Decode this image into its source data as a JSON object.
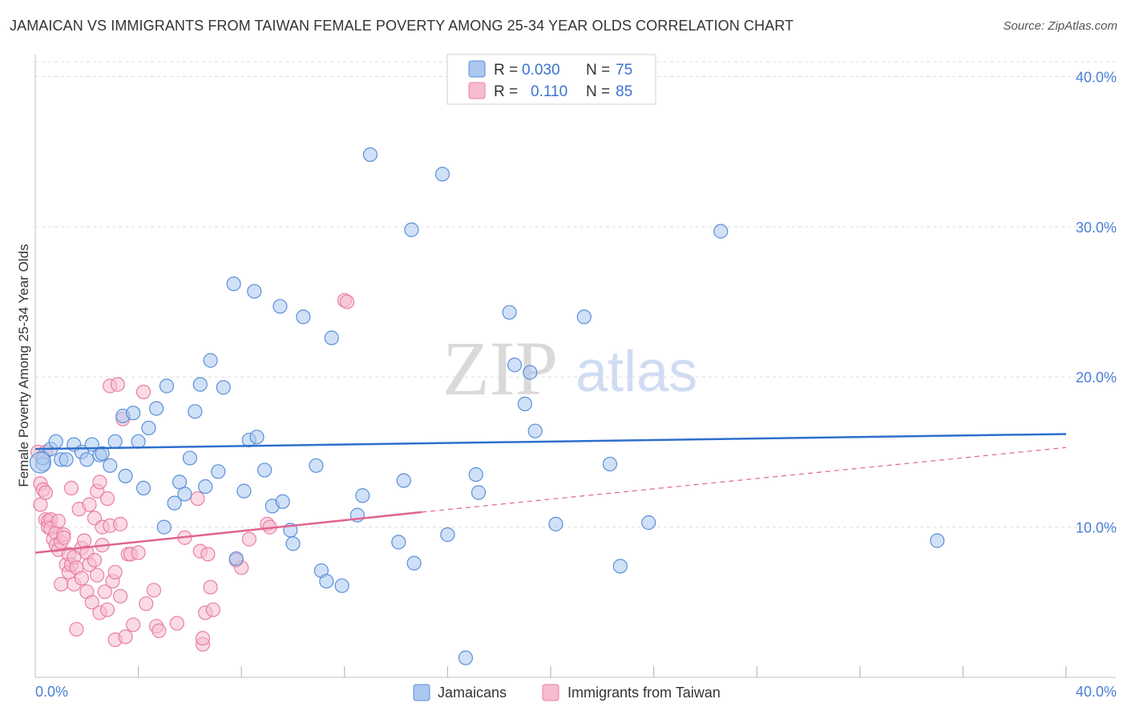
{
  "title": "JAMAICAN VS IMMIGRANTS FROM TAIWAN FEMALE POVERTY AMONG 25-34 YEAR OLDS CORRELATION CHART",
  "source": "Source: ZipAtlas.com",
  "watermark": {
    "zip": "ZIP",
    "atlas": "atlas"
  },
  "colors": {
    "jamaicans_fill": "#aac8f0",
    "jamaicans_stroke": "#5b8fd8",
    "jamaicans_line": "#2e6fcc",
    "taiwan_fill": "#f6bcd0",
    "taiwan_stroke": "#e87fa3",
    "taiwan_line": "#e0648f",
    "tick_label": "#4a7fd4",
    "grid": "#dddddd"
  },
  "legend": {
    "rows": [
      {
        "r_label": "R =",
        "r_value": "0.030",
        "n_label": "N =",
        "n_value": "75"
      },
      {
        "r_label": "R =",
        "r_value": "0.110",
        "n_label": "N =",
        "n_value": "85"
      }
    ]
  },
  "bottom_legend": [
    "Jamaicans",
    "Immigrants from Taiwan"
  ],
  "chart_data": {
    "type": "scatter",
    "title": "JAMAICAN VS IMMIGRANTS FROM TAIWAN FEMALE POVERTY AMONG 25-34 YEAR OLDS CORRELATION CHART",
    "xlabel": "",
    "ylabel": "Female Poverty Among 25-34 Year Olds",
    "xlim": [
      0,
      40
    ],
    "ylim": [
      0,
      42
    ],
    "x_tick_labels": [
      "0.0%",
      "40.0%"
    ],
    "y_ticks": [
      10,
      20,
      30,
      40
    ],
    "y_tick_labels": [
      "10.0%",
      "20.0%",
      "30.0%",
      "40.0%"
    ],
    "grid": true,
    "legend_position": "top-center",
    "series": [
      {
        "name": "Jamaicans",
        "trend": {
          "x": [
            0,
            40
          ],
          "y": [
            15.2,
            16.2
          ]
        },
        "points": [
          [
            0.3,
            14.2
          ],
          [
            0.3,
            14.6
          ],
          [
            0.6,
            15.2
          ],
          [
            0.8,
            15.7
          ],
          [
            1.0,
            14.5
          ],
          [
            1.2,
            14.5
          ],
          [
            1.5,
            15.5
          ],
          [
            1.8,
            15.0
          ],
          [
            2.0,
            14.5
          ],
          [
            2.2,
            15.5
          ],
          [
            2.5,
            14.8
          ],
          [
            2.6,
            14.9
          ],
          [
            2.9,
            14.1
          ],
          [
            3.1,
            15.7
          ],
          [
            3.4,
            17.4
          ],
          [
            3.5,
            13.4
          ],
          [
            3.8,
            17.6
          ],
          [
            4.0,
            15.7
          ],
          [
            4.2,
            12.6
          ],
          [
            4.4,
            16.6
          ],
          [
            4.7,
            17.9
          ],
          [
            5.0,
            10.0
          ],
          [
            5.1,
            19.4
          ],
          [
            5.4,
            11.6
          ],
          [
            5.6,
            13.0
          ],
          [
            5.8,
            12.2
          ],
          [
            6.0,
            14.6
          ],
          [
            6.2,
            17.7
          ],
          [
            6.4,
            19.5
          ],
          [
            6.6,
            12.7
          ],
          [
            6.8,
            21.1
          ],
          [
            7.1,
            13.7
          ],
          [
            7.3,
            19.3
          ],
          [
            7.7,
            26.2
          ],
          [
            7.8,
            7.9
          ],
          [
            8.1,
            12.4
          ],
          [
            8.3,
            15.8
          ],
          [
            8.5,
            25.7
          ],
          [
            8.6,
            16.0
          ],
          [
            8.9,
            13.8
          ],
          [
            9.2,
            11.4
          ],
          [
            9.5,
            24.7
          ],
          [
            9.6,
            11.7
          ],
          [
            9.9,
            9.8
          ],
          [
            10.0,
            8.9
          ],
          [
            10.4,
            24.0
          ],
          [
            10.9,
            14.1
          ],
          [
            11.1,
            7.1
          ],
          [
            11.3,
            6.4
          ],
          [
            11.5,
            22.6
          ],
          [
            11.9,
            6.1
          ],
          [
            12.5,
            10.8
          ],
          [
            12.7,
            12.1
          ],
          [
            13.0,
            34.8
          ],
          [
            14.1,
            9.0
          ],
          [
            14.3,
            13.1
          ],
          [
            14.6,
            29.8
          ],
          [
            14.7,
            7.6
          ],
          [
            15.8,
            33.5
          ],
          [
            16.0,
            9.5
          ],
          [
            16.7,
            1.3
          ],
          [
            17.1,
            13.5
          ],
          [
            17.2,
            12.3
          ],
          [
            18.4,
            24.3
          ],
          [
            18.6,
            20.8
          ],
          [
            19.0,
            18.2
          ],
          [
            19.2,
            20.3
          ],
          [
            19.4,
            16.4
          ],
          [
            20.2,
            10.2
          ],
          [
            21.3,
            24.0
          ],
          [
            22.3,
            14.2
          ],
          [
            22.7,
            7.4
          ],
          [
            23.8,
            10.3
          ],
          [
            26.6,
            29.7
          ],
          [
            35.0,
            9.1
          ]
        ]
      },
      {
        "name": "Immigrants from Taiwan",
        "trend": {
          "x": [
            0,
            15
          ],
          "y": [
            8.3,
            11.0
          ]
        },
        "trend_dashed": {
          "x": [
            15,
            40
          ],
          "y": [
            11.0,
            15.3
          ]
        },
        "points": [
          [
            0.1,
            15.0
          ],
          [
            0.2,
            12.9
          ],
          [
            0.2,
            11.5
          ],
          [
            0.3,
            12.5
          ],
          [
            0.4,
            12.3
          ],
          [
            0.4,
            10.5
          ],
          [
            0.5,
            10.4
          ],
          [
            0.5,
            10.0
          ],
          [
            0.6,
            10.5
          ],
          [
            0.6,
            9.9
          ],
          [
            0.7,
            9.2
          ],
          [
            0.8,
            9.6
          ],
          [
            0.8,
            8.8
          ],
          [
            0.9,
            10.4
          ],
          [
            0.9,
            8.5
          ],
          [
            1.0,
            9.0
          ],
          [
            1.0,
            6.2
          ],
          [
            1.1,
            9.5
          ],
          [
            1.1,
            9.3
          ],
          [
            1.2,
            7.5
          ],
          [
            1.3,
            8.2
          ],
          [
            1.3,
            7.0
          ],
          [
            1.4,
            12.6
          ],
          [
            1.4,
            7.5
          ],
          [
            1.5,
            8.0
          ],
          [
            1.5,
            6.2
          ],
          [
            1.6,
            7.3
          ],
          [
            1.6,
            3.2
          ],
          [
            1.7,
            11.2
          ],
          [
            1.8,
            8.6
          ],
          [
            1.8,
            6.6
          ],
          [
            1.9,
            9.1
          ],
          [
            2.0,
            8.3
          ],
          [
            2.0,
            5.7
          ],
          [
            2.1,
            11.5
          ],
          [
            2.1,
            7.5
          ],
          [
            2.2,
            5.0
          ],
          [
            2.3,
            10.6
          ],
          [
            2.3,
            7.8
          ],
          [
            2.4,
            12.4
          ],
          [
            2.4,
            6.8
          ],
          [
            2.5,
            13.0
          ],
          [
            2.5,
            4.3
          ],
          [
            2.6,
            10.0
          ],
          [
            2.6,
            8.8
          ],
          [
            2.7,
            5.7
          ],
          [
            2.8,
            11.9
          ],
          [
            2.8,
            4.5
          ],
          [
            2.9,
            19.4
          ],
          [
            2.9,
            10.1
          ],
          [
            3.0,
            6.4
          ],
          [
            3.1,
            7.0
          ],
          [
            3.1,
            2.5
          ],
          [
            3.2,
            19.5
          ],
          [
            3.3,
            5.4
          ],
          [
            3.3,
            10.2
          ],
          [
            3.4,
            17.2
          ],
          [
            3.5,
            2.7
          ],
          [
            3.6,
            8.2
          ],
          [
            3.7,
            8.2
          ],
          [
            3.8,
            3.5
          ],
          [
            4.0,
            8.3
          ],
          [
            4.2,
            19.0
          ],
          [
            4.3,
            4.9
          ],
          [
            4.6,
            5.8
          ],
          [
            4.7,
            3.4
          ],
          [
            4.8,
            3.1
          ],
          [
            5.5,
            3.6
          ],
          [
            5.8,
            9.3
          ],
          [
            6.3,
            11.9
          ],
          [
            6.4,
            8.4
          ],
          [
            6.5,
            2.2
          ],
          [
            6.5,
            2.6
          ],
          [
            6.6,
            4.3
          ],
          [
            6.7,
            8.2
          ],
          [
            6.8,
            6.0
          ],
          [
            6.9,
            4.5
          ],
          [
            7.8,
            7.8
          ],
          [
            8.0,
            7.3
          ],
          [
            8.3,
            9.2
          ],
          [
            9.0,
            10.2
          ],
          [
            9.1,
            10.0
          ],
          [
            12.0,
            25.1
          ],
          [
            12.1,
            25.0
          ],
          [
            0.4,
            15.0
          ]
        ]
      }
    ]
  }
}
